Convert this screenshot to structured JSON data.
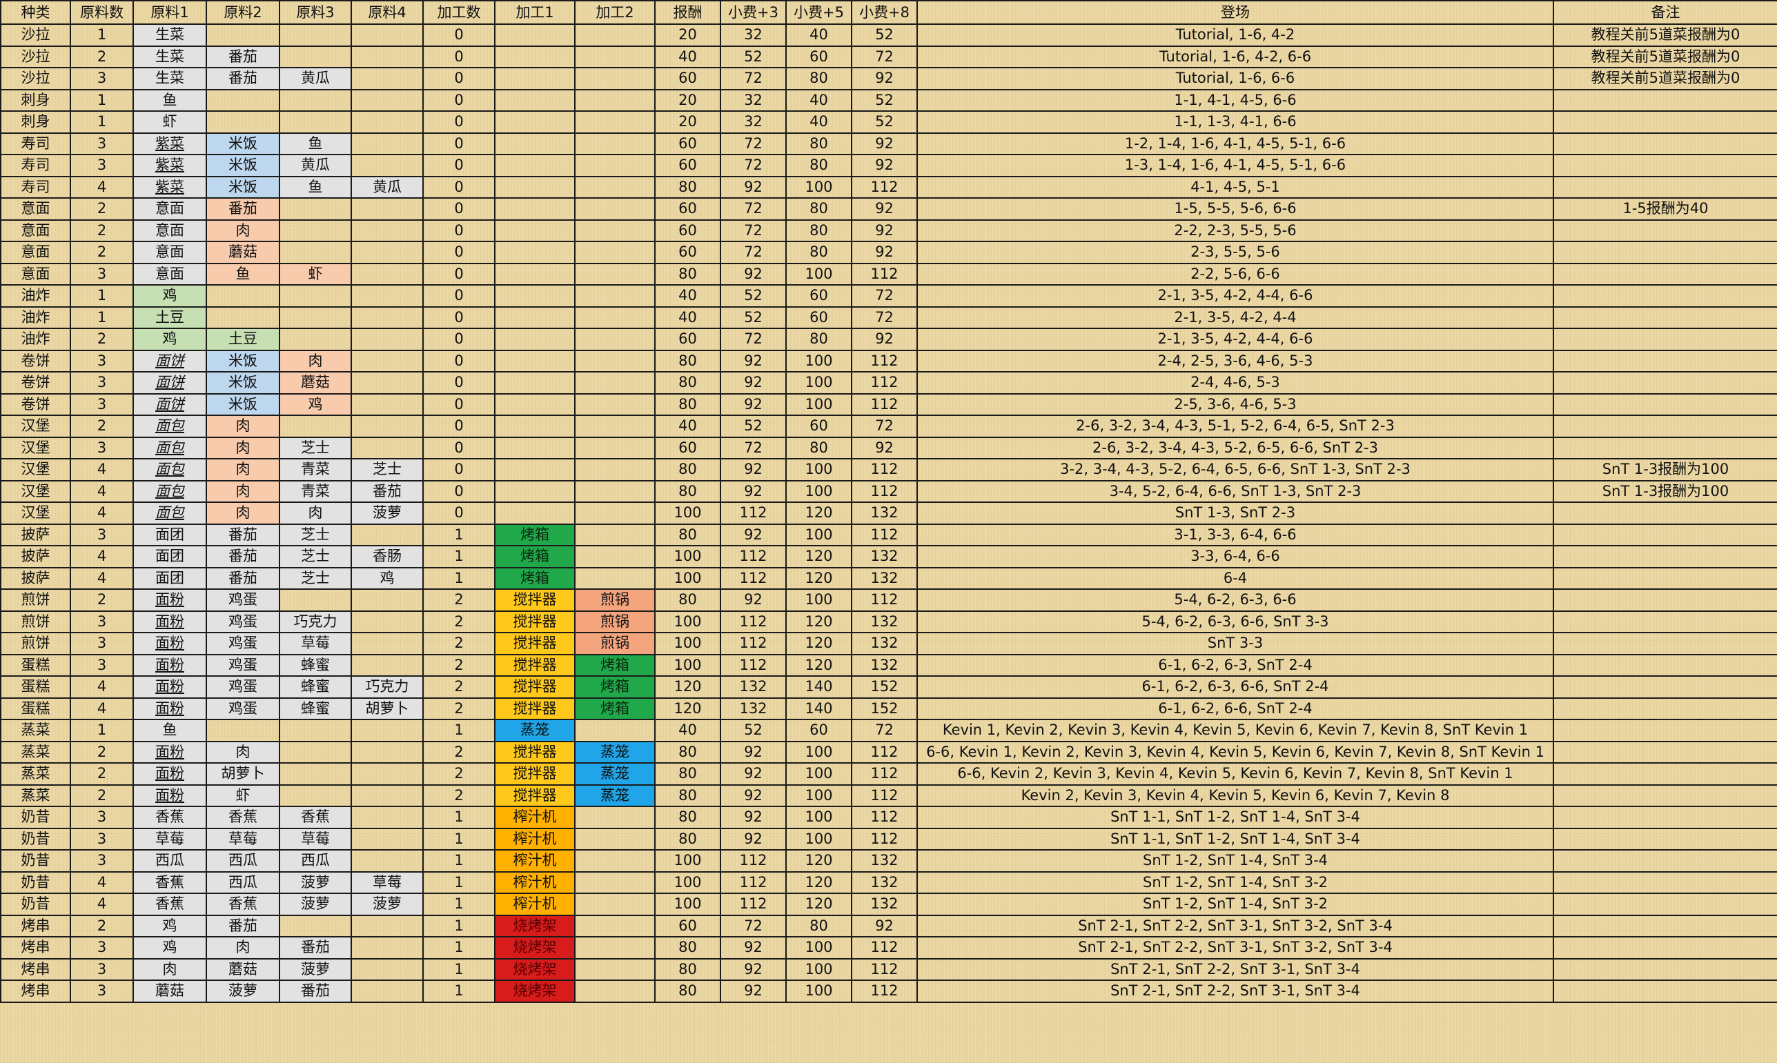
{
  "headers": [
    "种类",
    "原料数",
    "原料1",
    "原料2",
    "原料3",
    "原料4",
    "加工数",
    "加工1",
    "加工2",
    "报酬",
    "小费+3",
    "小费+5",
    "小费+8",
    "登场",
    "备注"
  ],
  "rows": [
    [
      "沙拉",
      "1",
      "生菜",
      "",
      "",
      "",
      "0",
      "",
      "",
      "20",
      "32",
      "40",
      "52",
      "Tutorial, 1-6, 4-2",
      "教程关前5道菜报酬为0"
    ],
    [
      "沙拉",
      "2",
      "生菜",
      "番茄",
      "",
      "",
      "0",
      "",
      "",
      "40",
      "52",
      "60",
      "72",
      "Tutorial, 1-6, 4-2, 6-6",
      "教程关前5道菜报酬为0"
    ],
    [
      "沙拉",
      "3",
      "生菜",
      "番茄",
      "黄瓜",
      "",
      "0",
      "",
      "",
      "60",
      "72",
      "80",
      "92",
      "Tutorial, 1-6, 6-6",
      "教程关前5道菜报酬为0"
    ],
    [
      "刺身",
      "1",
      "鱼",
      "",
      "",
      "",
      "0",
      "",
      "",
      "20",
      "32",
      "40",
      "52",
      "1-1, 4-1, 4-5, 6-6",
      ""
    ],
    [
      "刺身",
      "1",
      "虾",
      "",
      "",
      "",
      "0",
      "",
      "",
      "20",
      "32",
      "40",
      "52",
      "1-1, 1-3, 4-1, 6-6",
      ""
    ],
    [
      "寿司",
      "3",
      "紫菜",
      "米饭",
      "鱼",
      "",
      "0",
      "",
      "",
      "60",
      "72",
      "80",
      "92",
      "1-2, 1-4, 1-6, 4-1, 4-5, 5-1, 6-6",
      ""
    ],
    [
      "寿司",
      "3",
      "紫菜",
      "米饭",
      "黄瓜",
      "",
      "0",
      "",
      "",
      "60",
      "72",
      "80",
      "92",
      "1-3, 1-4, 1-6, 4-1, 4-5, 5-1, 6-6",
      ""
    ],
    [
      "寿司",
      "4",
      "紫菜",
      "米饭",
      "鱼",
      "黄瓜",
      "0",
      "",
      "",
      "80",
      "92",
      "100",
      "112",
      "4-1, 4-5, 5-1",
      ""
    ],
    [
      "意面",
      "2",
      "意面",
      "番茄",
      "",
      "",
      "0",
      "",
      "",
      "60",
      "72",
      "80",
      "92",
      "1-5, 5-5, 5-6, 6-6",
      "1-5报酬为40"
    ],
    [
      "意面",
      "2",
      "意面",
      "肉",
      "",
      "",
      "0",
      "",
      "",
      "60",
      "72",
      "80",
      "92",
      "2-2, 2-3, 5-5, 5-6",
      ""
    ],
    [
      "意面",
      "2",
      "意面",
      "蘑菇",
      "",
      "",
      "0",
      "",
      "",
      "60",
      "72",
      "80",
      "92",
      "2-3, 5-5, 5-6",
      ""
    ],
    [
      "意面",
      "3",
      "意面",
      "鱼",
      "虾",
      "",
      "0",
      "",
      "",
      "80",
      "92",
      "100",
      "112",
      "2-2, 5-6, 6-6",
      ""
    ],
    [
      "油炸",
      "1",
      "鸡",
      "",
      "",
      "",
      "0",
      "",
      "",
      "40",
      "52",
      "60",
      "72",
      "2-1, 3-5, 4-2, 4-4, 6-6",
      ""
    ],
    [
      "油炸",
      "1",
      "土豆",
      "",
      "",
      "",
      "0",
      "",
      "",
      "40",
      "52",
      "60",
      "72",
      "2-1, 3-5, 4-2, 4-4",
      ""
    ],
    [
      "油炸",
      "2",
      "鸡",
      "土豆",
      "",
      "",
      "0",
      "",
      "",
      "60",
      "72",
      "80",
      "92",
      "2-1, 3-5, 4-2, 4-4, 6-6",
      ""
    ],
    [
      "卷饼",
      "3",
      "面饼",
      "米饭",
      "肉",
      "",
      "0",
      "",
      "",
      "80",
      "92",
      "100",
      "112",
      "2-4, 2-5, 3-6, 4-6, 5-3",
      ""
    ],
    [
      "卷饼",
      "3",
      "面饼",
      "米饭",
      "蘑菇",
      "",
      "0",
      "",
      "",
      "80",
      "92",
      "100",
      "112",
      "2-4, 4-6, 5-3",
      ""
    ],
    [
      "卷饼",
      "3",
      "面饼",
      "米饭",
      "鸡",
      "",
      "0",
      "",
      "",
      "80",
      "92",
      "100",
      "112",
      "2-5, 3-6, 4-6, 5-3",
      ""
    ],
    [
      "汉堡",
      "2",
      "面包",
      "肉",
      "",
      "",
      "0",
      "",
      "",
      "40",
      "52",
      "60",
      "72",
      "2-6, 3-2, 3-4, 4-3, 5-1, 5-2, 6-4, 6-5, SnT 2-3",
      ""
    ],
    [
      "汉堡",
      "3",
      "面包",
      "肉",
      "芝士",
      "",
      "0",
      "",
      "",
      "60",
      "72",
      "80",
      "92",
      "2-6, 3-2, 3-4, 4-3, 5-2, 6-5, 6-6, SnT 2-3",
      ""
    ],
    [
      "汉堡",
      "4",
      "面包",
      "肉",
      "青菜",
      "芝士",
      "0",
      "",
      "",
      "80",
      "92",
      "100",
      "112",
      "3-2, 3-4, 4-3, 5-2, 6-4, 6-5, 6-6, SnT 1-3, SnT 2-3",
      "SnT 1-3报酬为100"
    ],
    [
      "汉堡",
      "4",
      "面包",
      "肉",
      "青菜",
      "番茄",
      "0",
      "",
      "",
      "80",
      "92",
      "100",
      "112",
      "3-4, 5-2, 6-4, 6-6, SnT 1-3, SnT 2-3",
      "SnT 1-3报酬为100"
    ],
    [
      "汉堡",
      "4",
      "面包",
      "肉",
      "肉",
      "菠萝",
      "0",
      "",
      "",
      "100",
      "112",
      "120",
      "132",
      "SnT 1-3, SnT 2-3",
      ""
    ],
    [
      "披萨",
      "3",
      "面团",
      "番茄",
      "芝士",
      "",
      "1",
      "烤箱",
      "",
      "80",
      "92",
      "100",
      "112",
      "3-1, 3-3, 6-4, 6-6",
      ""
    ],
    [
      "披萨",
      "4",
      "面团",
      "番茄",
      "芝士",
      "香肠",
      "1",
      "烤箱",
      "",
      "100",
      "112",
      "120",
      "132",
      "3-3, 6-4, 6-6",
      ""
    ],
    [
      "披萨",
      "4",
      "面团",
      "番茄",
      "芝士",
      "鸡",
      "1",
      "烤箱",
      "",
      "100",
      "112",
      "120",
      "132",
      "6-4",
      ""
    ],
    [
      "煎饼",
      "2",
      "面粉",
      "鸡蛋",
      "",
      "",
      "2",
      "搅拌器",
      "煎锅",
      "80",
      "92",
      "100",
      "112",
      "5-4, 6-2, 6-3, 6-6",
      ""
    ],
    [
      "煎饼",
      "3",
      "面粉",
      "鸡蛋",
      "巧克力",
      "",
      "2",
      "搅拌器",
      "煎锅",
      "100",
      "112",
      "120",
      "132",
      "5-4, 6-2, 6-3, 6-6, SnT 3-3",
      ""
    ],
    [
      "煎饼",
      "3",
      "面粉",
      "鸡蛋",
      "草莓",
      "",
      "2",
      "搅拌器",
      "煎锅",
      "100",
      "112",
      "120",
      "132",
      "SnT 3-3",
      ""
    ],
    [
      "蛋糕",
      "3",
      "面粉",
      "鸡蛋",
      "蜂蜜",
      "",
      "2",
      "搅拌器",
      "烤箱",
      "100",
      "112",
      "120",
      "132",
      "6-1, 6-2, 6-3, SnT 2-4",
      ""
    ],
    [
      "蛋糕",
      "4",
      "面粉",
      "鸡蛋",
      "蜂蜜",
      "巧克力",
      "2",
      "搅拌器",
      "烤箱",
      "120",
      "132",
      "140",
      "152",
      "6-1, 6-2, 6-3, 6-6, SnT 2-4",
      ""
    ],
    [
      "蛋糕",
      "4",
      "面粉",
      "鸡蛋",
      "蜂蜜",
      "胡萝卜",
      "2",
      "搅拌器",
      "烤箱",
      "120",
      "132",
      "140",
      "152",
      "6-1, 6-2, 6-6, SnT 2-4",
      ""
    ],
    [
      "蒸菜",
      "1",
      "鱼",
      "",
      "",
      "",
      "1",
      "蒸笼",
      "",
      "40",
      "52",
      "60",
      "72",
      "Kevin 1, Kevin 2, Kevin 3, Kevin 4, Kevin 5, Kevin 6, Kevin 7, Kevin 8, SnT Kevin 1",
      ""
    ],
    [
      "蒸菜",
      "2",
      "面粉",
      "肉",
      "",
      "",
      "2",
      "搅拌器",
      "蒸笼",
      "80",
      "92",
      "100",
      "112",
      "6-6, Kevin 1, Kevin 2, Kevin 3, Kevin 4, Kevin 5, Kevin 6, Kevin 7, Kevin 8, SnT Kevin 1",
      ""
    ],
    [
      "蒸菜",
      "2",
      "面粉",
      "胡萝卜",
      "",
      "",
      "2",
      "搅拌器",
      "蒸笼",
      "80",
      "92",
      "100",
      "112",
      "6-6, Kevin 2, Kevin 3, Kevin 4, Kevin 5, Kevin 6, Kevin 7, Kevin 8, SnT Kevin 1",
      ""
    ],
    [
      "蒸菜",
      "2",
      "面粉",
      "虾",
      "",
      "",
      "2",
      "搅拌器",
      "蒸笼",
      "80",
      "92",
      "100",
      "112",
      "Kevin 2, Kevin 3, Kevin 4, Kevin 5, Kevin 6, Kevin 7, Kevin 8",
      ""
    ],
    [
      "奶昔",
      "3",
      "香蕉",
      "香蕉",
      "香蕉",
      "",
      "1",
      "榨汁机",
      "",
      "80",
      "92",
      "100",
      "112",
      "SnT 1-1, SnT 1-2, SnT 1-4, SnT 3-4",
      ""
    ],
    [
      "奶昔",
      "3",
      "草莓",
      "草莓",
      "草莓",
      "",
      "1",
      "榨汁机",
      "",
      "80",
      "92",
      "100",
      "112",
      "SnT 1-1, SnT 1-2, SnT 1-4, SnT 3-4",
      ""
    ],
    [
      "奶昔",
      "3",
      "西瓜",
      "西瓜",
      "西瓜",
      "",
      "1",
      "榨汁机",
      "",
      "100",
      "112",
      "120",
      "132",
      "SnT 1-2, SnT 1-4, SnT 3-4",
      ""
    ],
    [
      "奶昔",
      "4",
      "香蕉",
      "西瓜",
      "菠萝",
      "草莓",
      "1",
      "榨汁机",
      "",
      "100",
      "112",
      "120",
      "132",
      "SnT 1-2, SnT 1-4, SnT 3-2",
      ""
    ],
    [
      "奶昔",
      "4",
      "香蕉",
      "香蕉",
      "菠萝",
      "菠萝",
      "1",
      "榨汁机",
      "",
      "100",
      "112",
      "120",
      "132",
      "SnT 1-2, SnT 1-4, SnT 3-2",
      ""
    ],
    [
      "烤串",
      "2",
      "鸡",
      "番茄",
      "",
      "",
      "1",
      "烧烤架",
      "",
      "60",
      "72",
      "80",
      "92",
      "SnT 2-1, SnT 2-2, SnT 3-1, SnT 3-2, SnT 3-4",
      ""
    ],
    [
      "烤串",
      "3",
      "鸡",
      "肉",
      "番茄",
      "",
      "1",
      "烧烤架",
      "",
      "80",
      "92",
      "100",
      "112",
      "SnT 2-1, SnT 2-2, SnT 3-1, SnT 3-2, SnT 3-4",
      ""
    ],
    [
      "烤串",
      "3",
      "肉",
      "蘑菇",
      "菠萝",
      "",
      "1",
      "烧烤架",
      "",
      "80",
      "92",
      "100",
      "112",
      "SnT 2-1, SnT 2-2, SnT 3-1, SnT 3-4",
      ""
    ],
    [
      "烤串",
      "3",
      "蘑菇",
      "菠萝",
      "番茄",
      "",
      "1",
      "烧烤架",
      "",
      "80",
      "92",
      "100",
      "112",
      "SnT 2-1, SnT 2-2, SnT 3-1, SnT 3-4",
      ""
    ]
  ],
  "colors": {
    "background": "#ecd9a6",
    "gray": "#e2e2e2",
    "rice": "#bdd7ee",
    "meat": "#f8cbad",
    "fried": "#c6e0b4",
    "oven": "#21a84a",
    "mixer": "#ffc81a",
    "pan": "#f4a57e",
    "steamer": "#1fa5e8",
    "juicer": "#ffb000",
    "grill": "#d81c1c"
  }
}
